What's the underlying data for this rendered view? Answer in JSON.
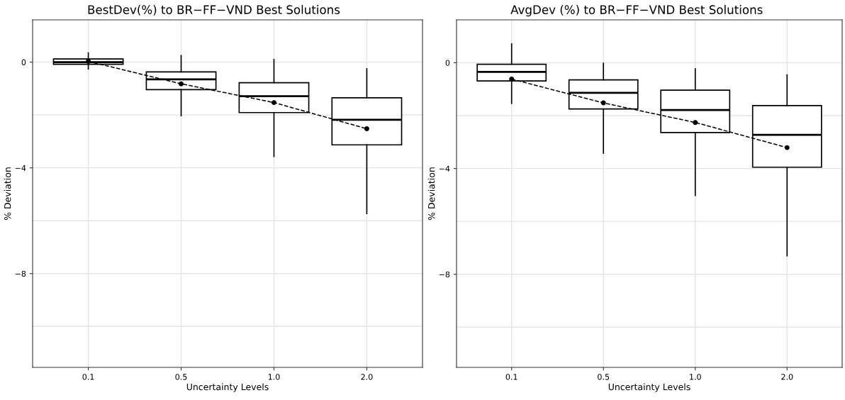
{
  "chart_data": [
    {
      "type": "box",
      "title": "BestDev(%) to BR−FF−VND Best Solutions",
      "xlabel": "Uncertainty Levels",
      "ylabel": "% Deviation",
      "categories": [
        "0.1",
        "0.5",
        "1.0",
        "2.0"
      ],
      "ylim": [
        -11.55,
        1.6
      ],
      "yticks": [
        {
          "value": -10,
          "label": null
        },
        {
          "value": -8,
          "label": "−8"
        },
        {
          "value": -6,
          "label": null
        },
        {
          "value": -4,
          "label": "−4"
        },
        {
          "value": -2,
          "label": null
        },
        0
      ],
      "grid": true,
      "legend": false,
      "boxes": [
        {
          "low": -0.26,
          "q1": -0.08,
          "median": 0,
          "q3": 0.12,
          "high": 0.35,
          "mean": 0.03
        },
        {
          "low": -2.03,
          "q1": -1.04,
          "median": -0.65,
          "q3": -0.37,
          "high": 0.25,
          "mean": -0.82
        },
        {
          "low": -3.57,
          "q1": -1.91,
          "median": -1.29,
          "q3": -0.78,
          "high": 0.1,
          "mean": -1.53
        },
        {
          "low": -5.73,
          "q1": -3.13,
          "median": -2.18,
          "q3": -1.35,
          "high": -0.25,
          "mean": -2.52
        }
      ],
      "series": [
        {
          "type": "line",
          "color": "#000000",
          "line_style": "dashed",
          "marker": "none",
          "values": [
            0.03,
            -0.82,
            -1.53,
            -2.52
          ]
        }
      ]
    },
    {
      "type": "box",
      "title": "AvgDev (%) to BR−FF−VND Best Solutions",
      "xlabel": "Uncertainty Levels",
      "ylabel": "% Deviation",
      "categories": [
        "0.1",
        "0.5",
        "1.0",
        "2.0"
      ],
      "ylim": [
        -11.52,
        1.62
      ],
      "yticks": [
        {
          "value": -10,
          "label": null
        },
        {
          "value": -8,
          "label": "−8"
        },
        {
          "value": -6,
          "label": null
        },
        {
          "value": -4,
          "label": "−4"
        },
        {
          "value": -2,
          "label": null
        },
        0
      ],
      "grid": true,
      "legend": false,
      "boxes": [
        {
          "low": -1.54,
          "q1": -0.69,
          "median": -0.35,
          "q3": -0.06,
          "high": 0.71,
          "mean": -0.62
        },
        {
          "low": -3.42,
          "q1": -1.75,
          "median": -1.14,
          "q3": -0.65,
          "high": -0.02,
          "mean": -1.52
        },
        {
          "low": -5.02,
          "q1": -2.64,
          "median": -1.79,
          "q3": -1.04,
          "high": -0.23,
          "mean": -2.26
        },
        {
          "low": -7.3,
          "q1": -3.95,
          "median": -2.73,
          "q3": -1.62,
          "high": -0.46,
          "mean": -3.21
        }
      ],
      "series": [
        {
          "type": "line",
          "color": "#000000",
          "line_style": "dashed",
          "marker": "none",
          "values": [
            -0.62,
            -1.52,
            -2.26,
            -3.21
          ]
        }
      ]
    }
  ]
}
